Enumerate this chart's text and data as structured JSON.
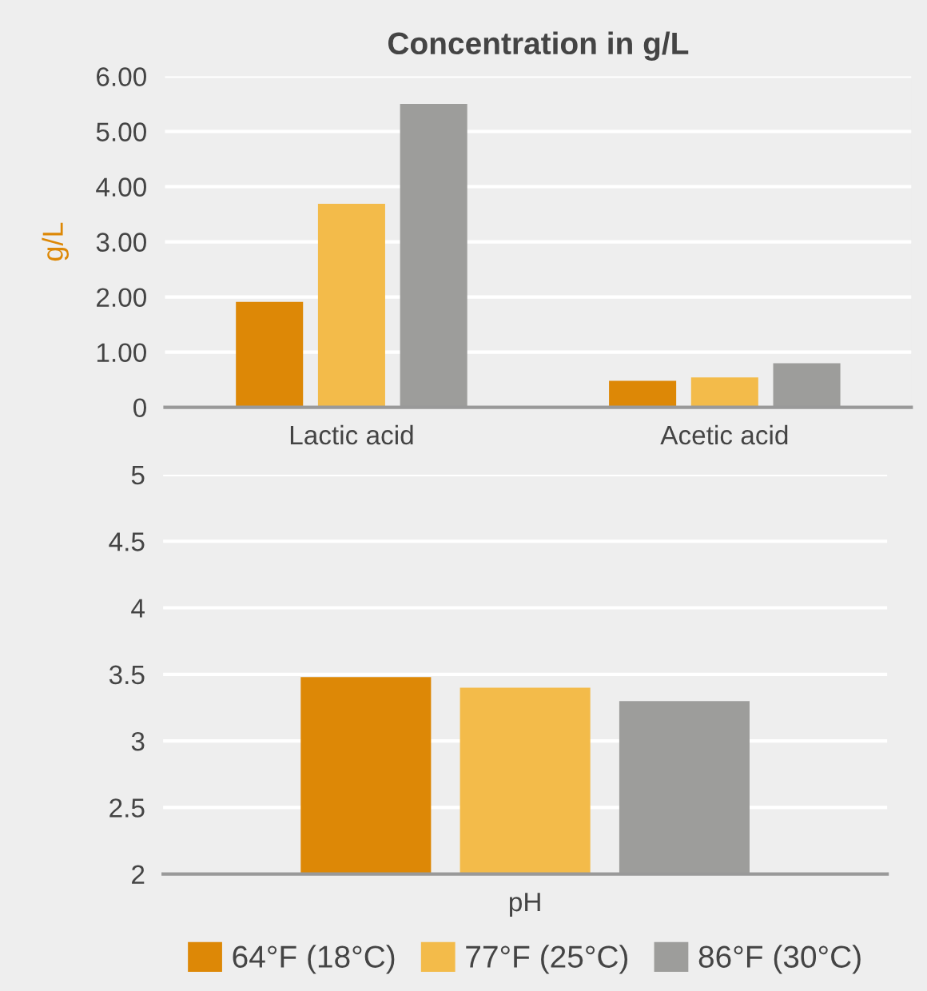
{
  "chart_data": [
    {
      "type": "bar",
      "title": "Concentration in g/L",
      "ylabel": "g/L",
      "categories": [
        "Lactic acid",
        "Acetic acid"
      ],
      "series": [
        {
          "color": "#dd8806",
          "values": [
            1.91,
            0.48
          ]
        },
        {
          "color": "#f3bb4a",
          "values": [
            3.69,
            0.54
          ]
        },
        {
          "color": "#9d9d9b",
          "values": [
            5.5,
            0.8
          ]
        }
      ],
      "ylim": [
        0,
        6
      ],
      "yticks": [
        0,
        {
          "value": 1,
          "label": "1.00"
        },
        {
          "value": 2,
          "label": "2.00"
        },
        {
          "value": 3,
          "label": "3.00"
        },
        {
          "value": 4,
          "label": "4.00"
        },
        {
          "value": 5,
          "label": "5.00"
        },
        {
          "value": 6,
          "label": "6.00"
        }
      ],
      "grid": "y"
    },
    {
      "type": "bar",
      "categories": [
        "pH"
      ],
      "series": [
        {
          "name": "64°F (18°C)",
          "color": "#dd8806",
          "values": [
            3.48
          ]
        },
        {
          "name": "77°F (25°C)",
          "color": "#f3bb4a",
          "values": [
            3.4
          ]
        },
        {
          "name": "86°F (30°C)",
          "color": "#9d9d9b",
          "values": [
            3.3
          ]
        }
      ],
      "ylim": [
        2,
        5
      ],
      "yticks": [
        2,
        2.5,
        3,
        3.5,
        4,
        4.5,
        5
      ],
      "grid": "y",
      "legend": "bottom"
    }
  ]
}
